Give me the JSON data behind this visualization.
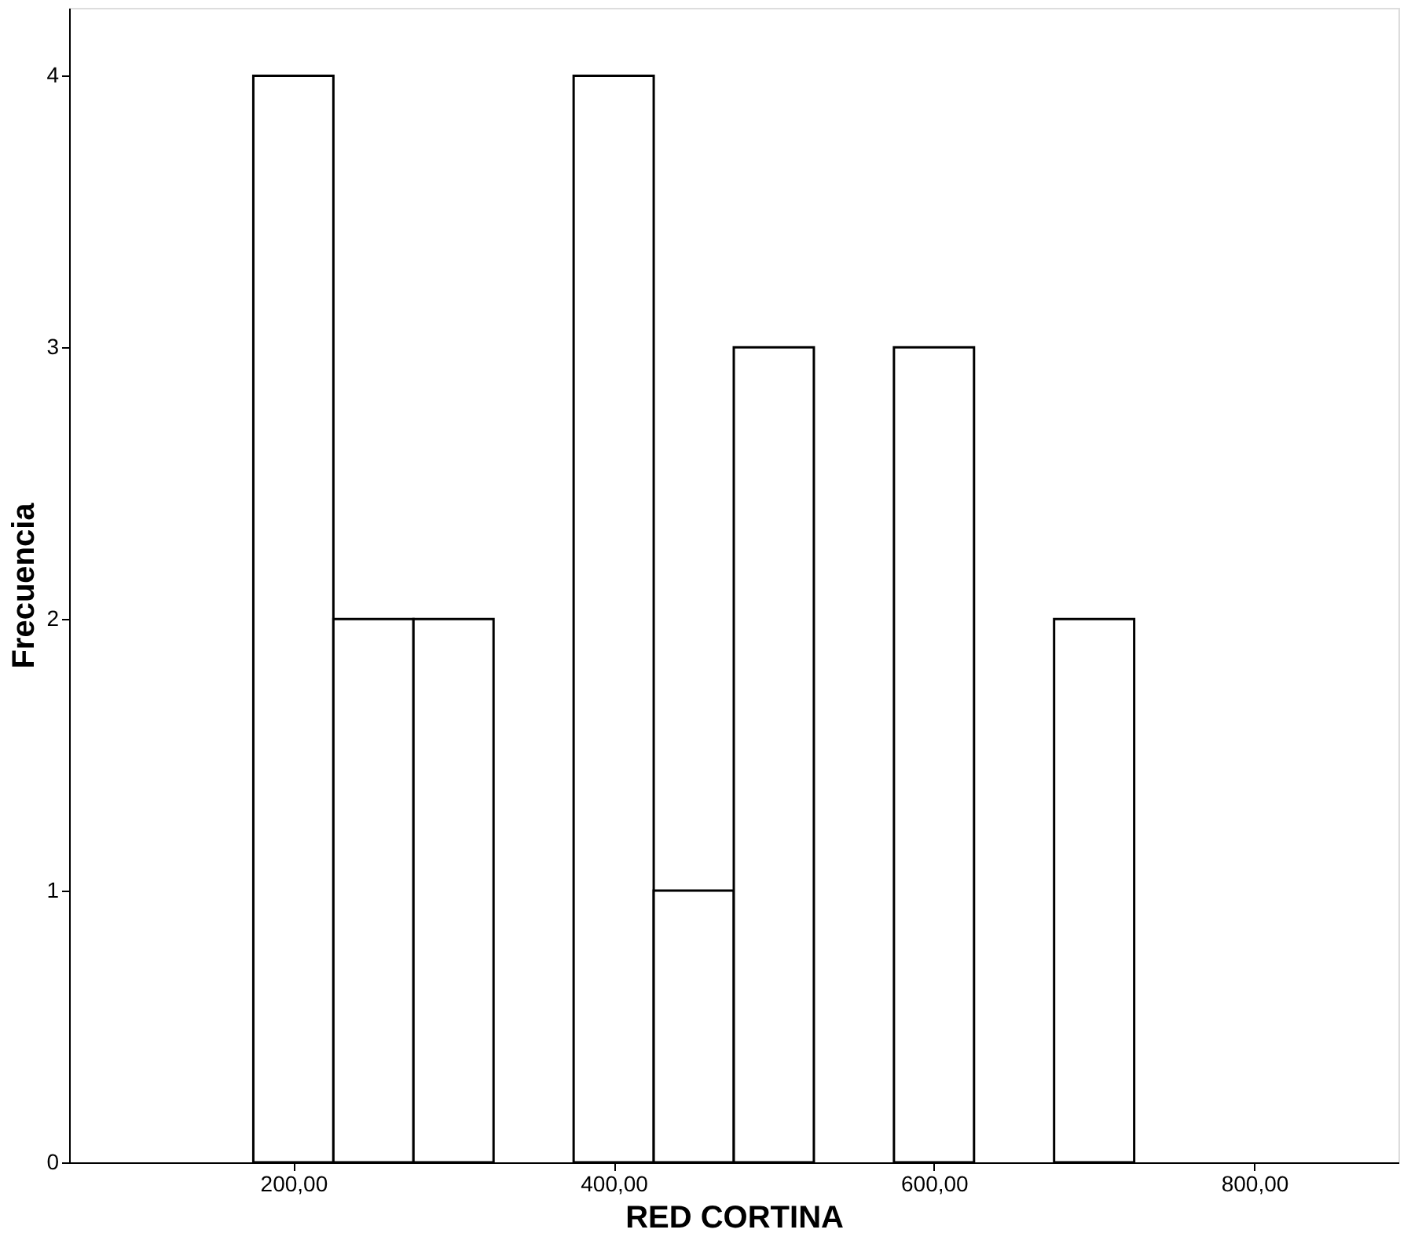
{
  "chart_data": {
    "type": "histogram",
    "xlabel": "RED CORTINA",
    "ylabel": "Frecuencia",
    "bins": [
      175,
      225,
      275,
      325,
      375,
      425,
      475,
      525,
      575,
      625,
      675,
      725
    ],
    "values": [
      4,
      2,
      2,
      0,
      4,
      1,
      3,
      0,
      3,
      0,
      2
    ],
    "color": "#ffffff",
    "xlim": [
      60,
      890
    ],
    "xticks": [
      {
        "value": 200,
        "label": "200,00"
      },
      {
        "value": 400,
        "label": "400,00"
      },
      {
        "value": 600,
        "label": "600,00"
      },
      {
        "value": 800,
        "label": "800,00"
      }
    ],
    "ylim": [
      0,
      4.25
    ],
    "yticks": [
      0,
      1,
      2,
      3,
      4
    ],
    "grid": false
  }
}
